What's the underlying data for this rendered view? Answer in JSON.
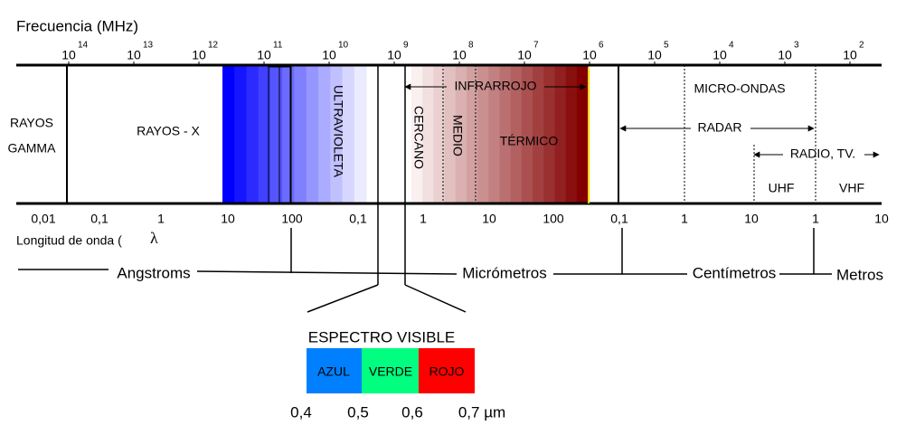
{
  "title": "Frecuencia (MHz)",
  "freq_ticks": [
    {
      "base": "10",
      "exp": "14"
    },
    {
      "base": "10",
      "exp": "13"
    },
    {
      "base": "10",
      "exp": "12"
    },
    {
      "base": "10",
      "exp": "11"
    },
    {
      "base": "10",
      "exp": "10"
    },
    {
      "base": "10",
      "exp": "9"
    },
    {
      "base": "10",
      "exp": "8"
    },
    {
      "base": "10",
      "exp": "7"
    },
    {
      "base": "10",
      "exp": "6"
    },
    {
      "base": "10",
      "exp": "5"
    },
    {
      "base": "10",
      "exp": "4"
    },
    {
      "base": "10",
      "exp": "3"
    },
    {
      "base": "10",
      "exp": "2"
    }
  ],
  "regions": {
    "gamma": [
      "RAYOS",
      "GAMMA"
    ],
    "xray": "RAYOS - X",
    "uv": "ULTRAVIOLETA",
    "ir": "INFRARROJO",
    "near": "CERCANO",
    "mid": "MEDIO",
    "thermal": "TÉRMICO",
    "micro": "MICRO-ONDAS",
    "radar": "RADAR",
    "radio": "RADIO, TV.",
    "uhf": "UHF",
    "vhf": "VHF"
  },
  "wave_ticks": [
    "0,01",
    "0,1",
    "1",
    "10",
    "100",
    "0,1",
    "1",
    "10",
    "100",
    "0,1",
    "1",
    "10",
    "1",
    "10"
  ],
  "wave_label": "Longitud de onda (",
  "lambda": "λ",
  "units": [
    "Angstroms",
    "Micrómetros",
    "Centímetros",
    "Metros"
  ],
  "visible": {
    "title": "ESPECTRO VISIBLE",
    "bands": [
      "AZUL",
      "VERDE",
      "ROJO"
    ],
    "ticks": [
      "0,4",
      "0,5",
      "0,6",
      "0,7 µm"
    ]
  }
}
